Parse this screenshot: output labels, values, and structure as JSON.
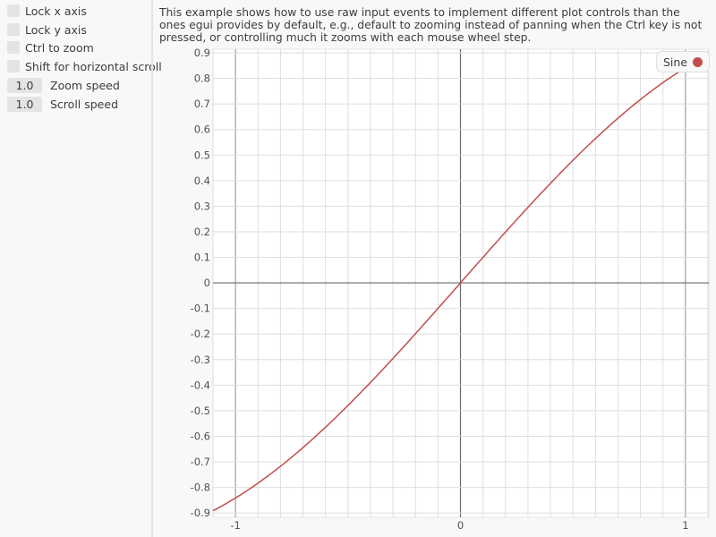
{
  "sidebar": {
    "checkboxes": [
      {
        "label": "Lock x axis",
        "checked": false
      },
      {
        "label": "Lock y axis",
        "checked": false
      },
      {
        "label": "Ctrl to zoom",
        "checked": false
      },
      {
        "label": "Shift for horizontal scroll",
        "checked": false
      }
    ],
    "zoom_speed": {
      "value": "1.0",
      "label": "Zoom speed"
    },
    "scroll_speed": {
      "value": "1.0",
      "label": "Scroll speed"
    }
  },
  "description": "This example shows how to use raw input events to implement different plot controls than the ones egui provides by default, e.g., default to zooming instead of panning when the Ctrl key is not pressed, or controlling much it zooms with each mouse wheel step.",
  "chart_data": {
    "type": "line",
    "series": [
      {
        "name": "Sine",
        "function": "sin(x)",
        "color": "#c24d4d"
      }
    ],
    "xlim": [
      -1.1,
      1.104
    ],
    "ylim": [
      -0.917,
      0.914
    ],
    "x_ticks": [
      "-1",
      "0",
      "1"
    ],
    "y_ticks": [
      "0.9",
      "0.8",
      "0.7",
      "0.6",
      "0.5",
      "0.4",
      "0.3",
      "0.2",
      "0.1",
      "0",
      "-0.1",
      "-0.2",
      "-0.3",
      "-0.4",
      "-0.5",
      "-0.6",
      "-0.7",
      "-0.8",
      "-0.9"
    ],
    "grid": true,
    "legend": "top-right"
  }
}
